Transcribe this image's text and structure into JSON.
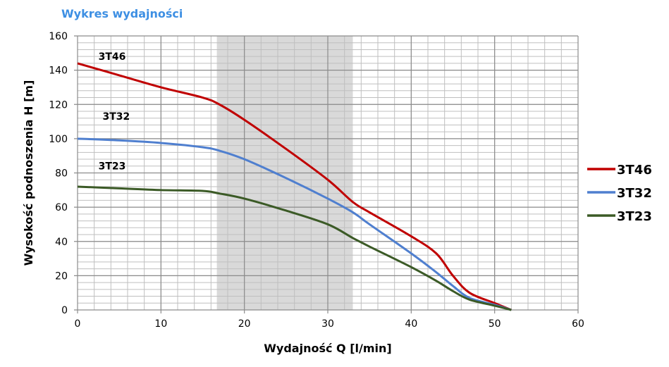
{
  "chart_data": {
    "type": "line",
    "title": "Wykres wydajności",
    "xlabel": "Wydajność Q [l/min]",
    "ylabel": "Wysokość podnoszenia H [m]",
    "xlim": [
      0,
      60
    ],
    "ylim": [
      0,
      160
    ],
    "xticks": [
      0,
      10,
      20,
      30,
      40,
      50,
      60
    ],
    "yticks": [
      0,
      20,
      40,
      60,
      80,
      100,
      120,
      140,
      160
    ],
    "grid": true,
    "legend_position": "right",
    "shaded_band_x": [
      16.7,
      33
    ],
    "series": [
      {
        "name": "3T46",
        "color": "#c00000",
        "label_at": [
          2.5,
          146
        ],
        "x": [
          0,
          5,
          10,
          15,
          17,
          20,
          25,
          30,
          33,
          35,
          40,
          43,
          45,
          47,
          50,
          52
        ],
        "y": [
          144,
          137,
          130,
          124,
          120,
          111,
          94,
          76,
          63,
          57,
          43,
          33,
          20,
          10,
          4,
          0
        ]
      },
      {
        "name": "3T32",
        "color": "#4f7fcf",
        "label_at": [
          3,
          111
        ],
        "x": [
          0,
          5,
          10,
          15,
          17,
          20,
          25,
          30,
          33,
          35,
          40,
          43,
          45,
          47,
          50,
          52
        ],
        "y": [
          100,
          99,
          97.5,
          95,
          93,
          88,
          77,
          65,
          57,
          50,
          33,
          22,
          14,
          7,
          3,
          0
        ]
      },
      {
        "name": "3T23",
        "color": "#3b5a26",
        "label_at": [
          2.5,
          82
        ],
        "x": [
          0,
          5,
          10,
          15,
          17,
          20,
          25,
          30,
          33,
          35,
          40,
          43,
          45,
          47,
          50,
          52
        ],
        "y": [
          72,
          71,
          70,
          69.5,
          68,
          65,
          58,
          50,
          42,
          37,
          25,
          17,
          11,
          6,
          2.5,
          0
        ]
      }
    ]
  }
}
